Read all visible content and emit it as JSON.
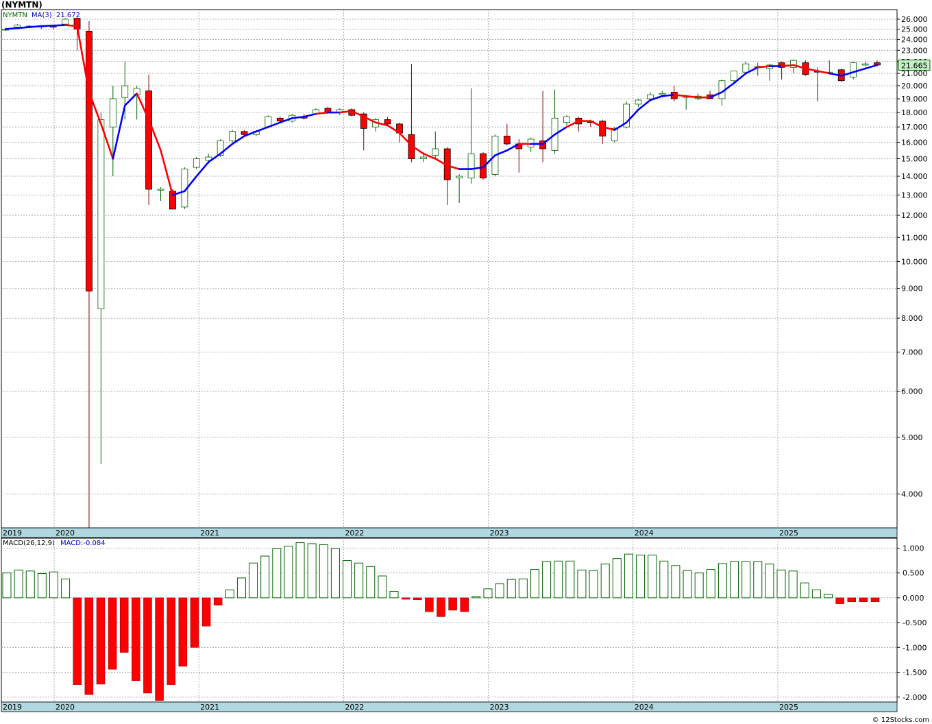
{
  "title": "(NYMTN)",
  "footer": "© 12Stocks.com",
  "chart_data": [
    {
      "type": "candlestick",
      "legend_symbol": "NYMTN",
      "legend_ma": "MA(3)",
      "legend_ma_value": "21.672",
      "last_price_label": "21.665",
      "y_scale": "log",
      "ylim": [
        3.5,
        27
      ],
      "y_ticks": [
        "26.000",
        "25.000",
        "24.000",
        "23.000",
        "22.000",
        "21.000",
        "20.000",
        "19.000",
        "18.000",
        "17.000",
        "16.000",
        "15.000",
        "14.000",
        "13.000",
        "12.000",
        "11.000",
        "10.000",
        "9.000",
        "8.000",
        "7.000",
        "6.000",
        "5.000",
        "4.000"
      ],
      "x_labels": [
        "2019",
        "2020",
        "2021",
        "2022",
        "2023",
        "2024",
        "2025"
      ],
      "grid": true,
      "colors": {
        "up": "#ffffff",
        "up_border": "#006400",
        "down": "#ff0000",
        "ma_up": "#0000ff",
        "ma_down": "#ff0000",
        "axis_band": "#b0d8e0"
      },
      "candles": [
        {
          "t": "2019-12",
          "o": 24.9,
          "h": 25.0,
          "l": 24.8,
          "c": 25.0
        },
        {
          "t": "2020-01",
          "o": 25.2,
          "h": 25.5,
          "l": 25.0,
          "c": 25.4
        },
        {
          "t": "2020-02",
          "o": 25.3,
          "h": 25.4,
          "l": 25.1,
          "c": 25.3
        },
        {
          "t": "2020-03",
          "o": 25.2,
          "h": 25.4,
          "l": 25.0,
          "c": 25.3
        },
        {
          "t": "2020-04",
          "o": 25.3,
          "h": 25.4,
          "l": 25.0,
          "c": 25.2
        },
        {
          "t": "2020-05",
          "o": 25.5,
          "h": 26.1,
          "l": 25.4,
          "c": 26.0
        },
        {
          "t": "2020-06",
          "o": 26.1,
          "h": 26.2,
          "l": 23.0,
          "c": 25.0
        },
        {
          "t": "2020-07",
          "o": 24.8,
          "h": 25.8,
          "l": 3.5,
          "c": 8.9
        },
        {
          "t": "2020-08",
          "o": 8.3,
          "h": 18.0,
          "l": 4.5,
          "c": 17.5
        },
        {
          "t": "2020-09",
          "o": 17.0,
          "h": 20.0,
          "l": 14.0,
          "c": 19.0
        },
        {
          "t": "2020-10",
          "o": 19.1,
          "h": 22.0,
          "l": 17.5,
          "c": 20.0
        },
        {
          "t": "2020-11",
          "o": 19.3,
          "h": 20.0,
          "l": 17.5,
          "c": 19.8
        },
        {
          "t": "2020-12",
          "o": 19.6,
          "h": 20.9,
          "l": 12.5,
          "c": 13.3
        },
        {
          "t": "2021-01",
          "o": 13.3,
          "h": 13.4,
          "l": 12.7,
          "c": 13.3
        },
        {
          "t": "2021-02",
          "o": 13.2,
          "h": 13.3,
          "l": 12.3,
          "c": 12.3
        },
        {
          "t": "2021-03",
          "o": 12.4,
          "h": 14.5,
          "l": 12.3,
          "c": 14.4
        },
        {
          "t": "2021-04",
          "o": 14.5,
          "h": 15.1,
          "l": 14.4,
          "c": 15.0
        },
        {
          "t": "2021-05",
          "o": 14.9,
          "h": 15.3,
          "l": 14.7,
          "c": 15.1
        },
        {
          "t": "2021-06",
          "o": 15.2,
          "h": 16.2,
          "l": 15.1,
          "c": 16.1
        },
        {
          "t": "2021-07",
          "o": 16.1,
          "h": 16.8,
          "l": 16.0,
          "c": 16.7
        },
        {
          "t": "2021-08",
          "o": 16.7,
          "h": 16.8,
          "l": 16.4,
          "c": 16.5
        },
        {
          "t": "2021-09",
          "o": 16.5,
          "h": 16.8,
          "l": 16.4,
          "c": 16.7
        },
        {
          "t": "2021-10",
          "o": 17.0,
          "h": 17.8,
          "l": 16.9,
          "c": 17.7
        },
        {
          "t": "2021-11",
          "o": 17.6,
          "h": 17.7,
          "l": 17.3,
          "c": 17.4
        },
        {
          "t": "2021-12",
          "o": 17.4,
          "h": 17.9,
          "l": 17.3,
          "c": 17.8
        },
        {
          "t": "2022-01",
          "o": 17.7,
          "h": 17.9,
          "l": 17.5,
          "c": 17.6
        },
        {
          "t": "2022-02",
          "o": 17.9,
          "h": 18.3,
          "l": 17.8,
          "c": 18.2
        },
        {
          "t": "2022-03",
          "o": 18.3,
          "h": 18.4,
          "l": 17.9,
          "c": 18.0
        },
        {
          "t": "2022-04",
          "o": 18.0,
          "h": 18.3,
          "l": 17.8,
          "c": 18.2
        },
        {
          "t": "2022-05",
          "o": 18.2,
          "h": 18.3,
          "l": 17.7,
          "c": 17.8
        },
        {
          "t": "2022-06",
          "o": 17.9,
          "h": 18.0,
          "l": 15.5,
          "c": 16.9
        },
        {
          "t": "2022-07",
          "o": 17.0,
          "h": 17.6,
          "l": 16.7,
          "c": 17.5
        },
        {
          "t": "2022-08",
          "o": 17.5,
          "h": 17.7,
          "l": 17.1,
          "c": 17.2
        },
        {
          "t": "2022-09",
          "o": 17.2,
          "h": 17.3,
          "l": 16.0,
          "c": 16.6
        },
        {
          "t": "2022-10",
          "o": 16.5,
          "h": 21.8,
          "l": 14.8,
          "c": 15.0
        },
        {
          "t": "2022-11",
          "o": 15.0,
          "h": 15.4,
          "l": 14.8,
          "c": 15.1
        },
        {
          "t": "2022-12",
          "o": 15.2,
          "h": 16.7,
          "l": 15.0,
          "c": 15.6
        },
        {
          "t": "2023-01",
          "o": 15.6,
          "h": 15.7,
          "l": 12.5,
          "c": 13.8
        },
        {
          "t": "2023-02",
          "o": 13.9,
          "h": 14.1,
          "l": 12.6,
          "c": 14.0
        },
        {
          "t": "2023-03",
          "o": 13.9,
          "h": 19.8,
          "l": 13.6,
          "c": 15.3
        },
        {
          "t": "2023-04",
          "o": 15.3,
          "h": 15.4,
          "l": 13.8,
          "c": 13.9
        },
        {
          "t": "2023-05",
          "o": 14.1,
          "h": 16.5,
          "l": 14.0,
          "c": 16.4
        },
        {
          "t": "2023-06",
          "o": 16.4,
          "h": 17.2,
          "l": 15.8,
          "c": 15.9
        },
        {
          "t": "2023-07",
          "o": 15.9,
          "h": 16.2,
          "l": 14.2,
          "c": 15.6
        },
        {
          "t": "2023-08",
          "o": 15.7,
          "h": 16.3,
          "l": 15.4,
          "c": 16.2
        },
        {
          "t": "2023-09",
          "o": 16.1,
          "h": 19.6,
          "l": 14.8,
          "c": 15.6
        },
        {
          "t": "2023-10",
          "o": 15.5,
          "h": 19.7,
          "l": 15.3,
          "c": 17.6
        },
        {
          "t": "2023-11",
          "o": 17.3,
          "h": 17.8,
          "l": 17.1,
          "c": 17.7
        },
        {
          "t": "2023-12",
          "o": 17.6,
          "h": 17.7,
          "l": 16.7,
          "c": 17.2
        },
        {
          "t": "2024-01",
          "o": 17.4,
          "h": 17.5,
          "l": 17.0,
          "c": 17.3
        },
        {
          "t": "2024-02",
          "o": 17.4,
          "h": 17.5,
          "l": 15.9,
          "c": 16.4
        },
        {
          "t": "2024-03",
          "o": 16.1,
          "h": 17.0,
          "l": 16.0,
          "c": 16.9
        },
        {
          "t": "2024-04",
          "o": 17.0,
          "h": 18.8,
          "l": 16.9,
          "c": 18.6
        },
        {
          "t": "2024-05",
          "o": 18.6,
          "h": 19.0,
          "l": 18.4,
          "c": 18.9
        },
        {
          "t": "2024-06",
          "o": 19.0,
          "h": 19.5,
          "l": 18.9,
          "c": 19.3
        },
        {
          "t": "2024-07",
          "o": 19.3,
          "h": 19.6,
          "l": 19.1,
          "c": 19.4
        },
        {
          "t": "2024-08",
          "o": 19.5,
          "h": 20.0,
          "l": 18.8,
          "c": 19.0
        },
        {
          "t": "2024-09",
          "o": 19.1,
          "h": 19.3,
          "l": 18.2,
          "c": 19.2
        },
        {
          "t": "2024-10",
          "o": 19.0,
          "h": 19.4,
          "l": 18.9,
          "c": 19.2
        },
        {
          "t": "2024-11",
          "o": 19.3,
          "h": 19.6,
          "l": 19.0,
          "c": 19.0
        },
        {
          "t": "2024-12",
          "o": 19.0,
          "h": 20.5,
          "l": 18.5,
          "c": 20.4
        },
        {
          "t": "2025-01",
          "o": 20.4,
          "h": 21.2,
          "l": 20.3,
          "c": 21.2
        },
        {
          "t": "2025-02",
          "o": 21.1,
          "h": 22.0,
          "l": 20.9,
          "c": 21.8
        },
        {
          "t": "2025-03",
          "o": 21.5,
          "h": 21.9,
          "l": 20.8,
          "c": 21.6
        },
        {
          "t": "2025-04",
          "o": 21.4,
          "h": 21.8,
          "l": 20.4,
          "c": 21.7
        },
        {
          "t": "2025-05",
          "o": 21.9,
          "h": 22.0,
          "l": 20.5,
          "c": 21.5
        },
        {
          "t": "2025-06",
          "o": 21.5,
          "h": 22.2,
          "l": 21.0,
          "c": 22.1
        },
        {
          "t": "2025-07",
          "o": 21.9,
          "h": 22.1,
          "l": 20.8,
          "c": 20.9
        },
        {
          "t": "2025-08",
          "o": 21.2,
          "h": 21.5,
          "l": 18.8,
          "c": 21.1
        },
        {
          "t": "2025-09",
          "o": 21.0,
          "h": 22.1,
          "l": 20.9,
          "c": 21.1
        },
        {
          "t": "2025-10",
          "o": 21.3,
          "h": 21.4,
          "l": 20.3,
          "c": 20.4
        },
        {
          "t": "2025-11",
          "o": 20.7,
          "h": 22.0,
          "l": 20.5,
          "c": 21.9
        },
        {
          "t": "2025-12",
          "o": 21.7,
          "h": 22.0,
          "l": 21.6,
          "c": 21.8
        },
        {
          "t": "2026-01",
          "o": 21.9,
          "h": 22.1,
          "l": 21.6,
          "c": 21.7
        }
      ],
      "ma": [
        25.0,
        25.1,
        25.2,
        25.3,
        25.35,
        25.4,
        25.3,
        19.5,
        17.2,
        15.0,
        18.5,
        19.4,
        17.5,
        15.5,
        13.0,
        13.2,
        14.0,
        14.8,
        15.3,
        15.9,
        16.4,
        16.7,
        17.0,
        17.3,
        17.6,
        17.7,
        17.9,
        18.0,
        18.0,
        18.1,
        17.7,
        17.3,
        17.1,
        16.6,
        15.8,
        15.3,
        15.0,
        14.6,
        14.4,
        14.4,
        14.5,
        15.2,
        15.5,
        15.9,
        15.9,
        15.9,
        16.5,
        17.0,
        17.4,
        17.4,
        17.0,
        16.8,
        17.3,
        18.2,
        18.9,
        19.2,
        19.3,
        19.2,
        19.1,
        19.1,
        19.5,
        20.2,
        21.0,
        21.5,
        21.6,
        21.6,
        21.7,
        21.4,
        21.2,
        21.0,
        20.8,
        21.1,
        21.4,
        21.7
      ],
      "ma_direction": [
        "u",
        "u",
        "u",
        "u",
        "u",
        "u",
        "d",
        "d",
        "d",
        "d",
        "u",
        "u",
        "d",
        "d",
        "d",
        "u",
        "u",
        "u",
        "u",
        "u",
        "u",
        "u",
        "u",
        "u",
        "u",
        "u",
        "u",
        "d",
        "u",
        "d",
        "d",
        "d",
        "d",
        "d",
        "d",
        "d",
        "d",
        "d",
        "d",
        "u",
        "u",
        "u",
        "u",
        "u",
        "d",
        "u",
        "u",
        "u",
        "d",
        "d",
        "d",
        "d",
        "u",
        "u",
        "u",
        "u",
        "u",
        "d",
        "d",
        "d",
        "u",
        "u",
        "u",
        "u",
        "d",
        "u",
        "d",
        "d",
        "d",
        "d",
        "u",
        "u",
        "u",
        "u"
      ]
    },
    {
      "type": "bar",
      "legend_indicator": "MACD(26,12,9)",
      "legend_value": "MACD:-0.084",
      "ylim": [
        -2.1,
        1.2
      ],
      "y_ticks": [
        "1.000",
        "0.500",
        "0.000",
        "-0.500",
        "-1.000",
        "-1.500",
        "-2.000"
      ],
      "x_labels": [
        "2019",
        "2020",
        "2021",
        "2022",
        "2023",
        "2024",
        "2025"
      ],
      "colors": {
        "positive_border": "#006400",
        "negative": "#ff0000"
      },
      "values": [
        0.5,
        0.56,
        0.54,
        0.49,
        0.52,
        0.38,
        -1.75,
        -1.95,
        -1.74,
        -1.44,
        -1.1,
        -1.67,
        -1.92,
        -2.07,
        -1.75,
        -1.38,
        -1.0,
        -0.57,
        -0.15,
        0.16,
        0.4,
        0.7,
        0.84,
        0.99,
        1.04,
        1.11,
        1.09,
        1.07,
        0.99,
        0.75,
        0.7,
        0.63,
        0.44,
        0.13,
        -0.03,
        -0.04,
        -0.28,
        -0.38,
        -0.25,
        -0.28,
        0.02,
        0.18,
        0.28,
        0.37,
        0.38,
        0.57,
        0.73,
        0.74,
        0.74,
        0.56,
        0.55,
        0.68,
        0.79,
        0.88,
        0.86,
        0.86,
        0.74,
        0.65,
        0.55,
        0.5,
        0.57,
        0.69,
        0.73,
        0.73,
        0.73,
        0.68,
        0.56,
        0.54,
        0.3,
        0.16,
        0.07,
        -0.12,
        -0.08,
        -0.08,
        -0.08
      ]
    }
  ]
}
